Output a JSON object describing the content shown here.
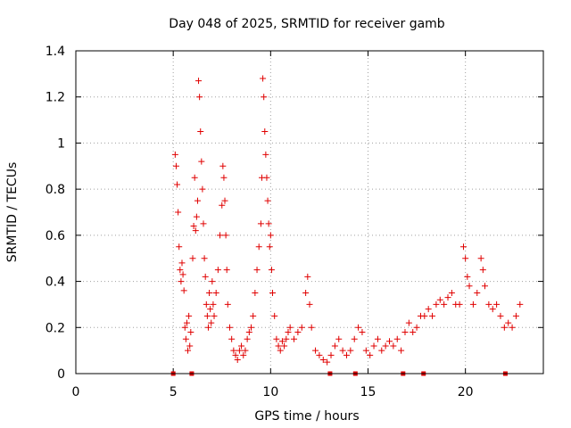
{
  "chart_data": {
    "type": "scatter",
    "title": "Day 048 of 2025, SRMTID for receiver gamb",
    "xlabel": "GPS time / hours",
    "ylabel": "SRMTID / TECUs",
    "xlim": [
      0,
      24
    ],
    "ylim": [
      0,
      1.4
    ],
    "xticks": [
      "0",
      "5",
      "10",
      "15",
      "20"
    ],
    "yticks": [
      "0",
      "0.2",
      "0.4",
      "0.6",
      "0.8",
      "1",
      "1.2",
      "1.4"
    ],
    "marker": "plus",
    "color": "#e00000",
    "grid": true,
    "series": [
      {
        "name": "SRMTID",
        "points": [
          [
            5.1,
            0.95
          ],
          [
            5.15,
            0.9
          ],
          [
            5.2,
            0.82
          ],
          [
            5.25,
            0.7
          ],
          [
            5.3,
            0.55
          ],
          [
            5.35,
            0.45
          ],
          [
            5.4,
            0.4
          ],
          [
            5.45,
            0.48
          ],
          [
            5.5,
            0.43
          ],
          [
            5.55,
            0.36
          ],
          [
            5.6,
            0.2
          ],
          [
            5.65,
            0.15
          ],
          [
            5.7,
            0.22
          ],
          [
            5.75,
            0.1
          ],
          [
            5.8,
            0.25
          ],
          [
            5.85,
            0.12
          ],
          [
            5.9,
            0.18
          ],
          [
            6.0,
            0.5
          ],
          [
            6.05,
            0.64
          ],
          [
            6.1,
            0.85
          ],
          [
            6.15,
            0.62
          ],
          [
            6.2,
            0.68
          ],
          [
            6.25,
            0.75
          ],
          [
            6.3,
            1.27
          ],
          [
            6.35,
            1.2
          ],
          [
            6.4,
            1.05
          ],
          [
            6.45,
            0.92
          ],
          [
            6.5,
            0.8
          ],
          [
            6.55,
            0.65
          ],
          [
            6.6,
            0.5
          ],
          [
            6.65,
            0.42
          ],
          [
            6.7,
            0.3
          ],
          [
            6.75,
            0.25
          ],
          [
            6.8,
            0.2
          ],
          [
            6.85,
            0.35
          ],
          [
            6.9,
            0.28
          ],
          [
            6.95,
            0.22
          ],
          [
            7.0,
            0.4
          ],
          [
            7.05,
            0.3
          ],
          [
            7.1,
            0.25
          ],
          [
            7.2,
            0.35
          ],
          [
            7.3,
            0.45
          ],
          [
            7.4,
            0.6
          ],
          [
            7.5,
            0.73
          ],
          [
            7.55,
            0.9
          ],
          [
            7.6,
            0.85
          ],
          [
            7.65,
            0.75
          ],
          [
            7.7,
            0.6
          ],
          [
            7.75,
            0.45
          ],
          [
            7.8,
            0.3
          ],
          [
            7.9,
            0.2
          ],
          [
            8.0,
            0.15
          ],
          [
            8.1,
            0.1
          ],
          [
            8.2,
            0.08
          ],
          [
            8.3,
            0.06
          ],
          [
            8.4,
            0.1
          ],
          [
            8.5,
            0.12
          ],
          [
            8.6,
            0.08
          ],
          [
            8.7,
            0.1
          ],
          [
            8.8,
            0.15
          ],
          [
            8.9,
            0.18
          ],
          [
            9.0,
            0.2
          ],
          [
            9.1,
            0.25
          ],
          [
            9.2,
            0.35
          ],
          [
            9.3,
            0.45
          ],
          [
            9.4,
            0.55
          ],
          [
            9.5,
            0.65
          ],
          [
            9.55,
            0.85
          ],
          [
            9.6,
            1.28
          ],
          [
            9.65,
            1.2
          ],
          [
            9.7,
            1.05
          ],
          [
            9.75,
            0.95
          ],
          [
            9.8,
            0.85
          ],
          [
            9.85,
            0.75
          ],
          [
            9.9,
            0.65
          ],
          [
            9.95,
            0.55
          ],
          [
            10.0,
            0.6
          ],
          [
            10.05,
            0.45
          ],
          [
            10.1,
            0.35
          ],
          [
            10.2,
            0.25
          ],
          [
            10.3,
            0.15
          ],
          [
            10.4,
            0.12
          ],
          [
            10.5,
            0.1
          ],
          [
            10.6,
            0.14
          ],
          [
            10.7,
            0.12
          ],
          [
            10.8,
            0.15
          ],
          [
            10.9,
            0.18
          ],
          [
            11.0,
            0.2
          ],
          [
            11.2,
            0.15
          ],
          [
            11.4,
            0.18
          ],
          [
            11.6,
            0.2
          ],
          [
            11.8,
            0.35
          ],
          [
            11.9,
            0.42
          ],
          [
            12.0,
            0.3
          ],
          [
            12.1,
            0.2
          ],
          [
            12.3,
            0.1
          ],
          [
            12.5,
            0.08
          ],
          [
            12.7,
            0.06
          ],
          [
            12.9,
            0.05
          ],
          [
            13.1,
            0.08
          ],
          [
            13.3,
            0.12
          ],
          [
            13.5,
            0.15
          ],
          [
            13.7,
            0.1
          ],
          [
            13.9,
            0.08
          ],
          [
            14.1,
            0.1
          ],
          [
            14.3,
            0.15
          ],
          [
            14.5,
            0.2
          ],
          [
            14.7,
            0.18
          ],
          [
            14.9,
            0.1
          ],
          [
            15.1,
            0.08
          ],
          [
            15.3,
            0.12
          ],
          [
            15.5,
            0.15
          ],
          [
            15.7,
            0.1
          ],
          [
            15.9,
            0.12
          ],
          [
            16.1,
            0.14
          ],
          [
            16.3,
            0.12
          ],
          [
            16.5,
            0.15
          ],
          [
            16.7,
            0.1
          ],
          [
            16.9,
            0.18
          ],
          [
            17.1,
            0.22
          ],
          [
            17.3,
            0.18
          ],
          [
            17.5,
            0.2
          ],
          [
            17.7,
            0.25
          ],
          [
            17.9,
            0.25
          ],
          [
            18.1,
            0.28
          ],
          [
            18.3,
            0.25
          ],
          [
            18.5,
            0.3
          ],
          [
            18.7,
            0.32
          ],
          [
            18.9,
            0.3
          ],
          [
            19.1,
            0.33
          ],
          [
            19.3,
            0.35
          ],
          [
            19.5,
            0.3
          ],
          [
            19.7,
            0.3
          ],
          [
            19.9,
            0.55
          ],
          [
            20.0,
            0.5
          ],
          [
            20.1,
            0.42
          ],
          [
            20.2,
            0.38
          ],
          [
            20.4,
            0.3
          ],
          [
            20.6,
            0.35
          ],
          [
            20.8,
            0.5
          ],
          [
            20.9,
            0.45
          ],
          [
            21.0,
            0.38
          ],
          [
            21.2,
            0.3
          ],
          [
            21.4,
            0.28
          ],
          [
            21.6,
            0.3
          ],
          [
            21.8,
            0.25
          ],
          [
            22.0,
            0.2
          ],
          [
            22.2,
            0.22
          ],
          [
            22.4,
            0.2
          ],
          [
            22.6,
            0.25
          ],
          [
            22.8,
            0.3
          ]
        ]
      }
    ],
    "gaps": [
      5.0,
      5.95,
      13.05,
      14.35,
      16.8,
      17.85,
      22.05
    ]
  }
}
